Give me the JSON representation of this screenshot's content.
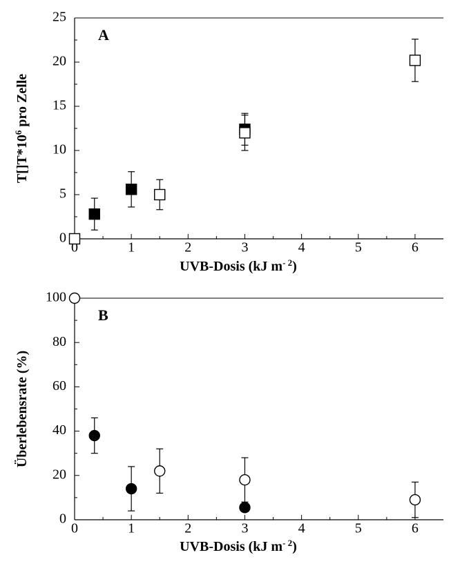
{
  "chart_data": [
    {
      "type": "scatter",
      "panel_label": "A",
      "xlabel_main": "UVB-Dosis (kJ m",
      "xlabel_sup": "- 2",
      "xlabel_close": ")",
      "ylabel_main": "T[]T*10",
      "ylabel_sup": "6",
      "ylabel_rest": " pro Zelle",
      "xlim": [
        0,
        6.5
      ],
      "ylim": [
        0,
        25
      ],
      "xticks": [
        0,
        1,
        2,
        3,
        4,
        5,
        6
      ],
      "yticks": [
        0,
        5,
        10,
        15,
        20,
        25
      ],
      "grid": false,
      "marker": "square",
      "series": [
        {
          "fill": "filled",
          "points": [
            {
              "x": 0.35,
              "y": 2.8,
              "err": 1.8
            },
            {
              "x": 1.0,
              "y": 5.6,
              "err": 2.0
            },
            {
              "x": 3.0,
              "y": 12.4,
              "err": 1.8
            }
          ]
        },
        {
          "fill": "open",
          "points": [
            {
              "x": 0.0,
              "y": 0.0,
              "err": 0
            },
            {
              "x": 1.5,
              "y": 5.0,
              "err": 1.7
            },
            {
              "x": 3.0,
              "y": 12.0,
              "err": 2.0
            },
            {
              "x": 6.0,
              "y": 20.2,
              "err": 2.4
            }
          ]
        }
      ]
    },
    {
      "type": "scatter",
      "panel_label": "B",
      "xlabel_main": "UVB-Dosis (kJ m",
      "xlabel_sup": "- 2",
      "xlabel_close": ")",
      "ylabel_main": "Überlebensrate (%)",
      "ylabel_sup": "",
      "ylabel_rest": "",
      "xlim": [
        0,
        6.5
      ],
      "ylim": [
        0,
        100
      ],
      "xticks": [
        0,
        1,
        2,
        3,
        4,
        5,
        6
      ],
      "yticks": [
        0,
        20,
        40,
        60,
        80,
        100
      ],
      "grid": false,
      "marker": "circle",
      "series": [
        {
          "fill": "filled",
          "points": [
            {
              "x": 0.35,
              "y": 38,
              "err": 8
            },
            {
              "x": 1.0,
              "y": 14,
              "err": 10
            },
            {
              "x": 3.0,
              "y": 5.5,
              "err": 0
            }
          ]
        },
        {
          "fill": "open",
          "points": [
            {
              "x": 0.0,
              "y": 100,
              "err": 0
            },
            {
              "x": 1.5,
              "y": 22,
              "err": 10
            },
            {
              "x": 3.0,
              "y": 18,
              "err": 10
            },
            {
              "x": 6.0,
              "y": 9,
              "err": 8
            }
          ]
        }
      ]
    }
  ]
}
